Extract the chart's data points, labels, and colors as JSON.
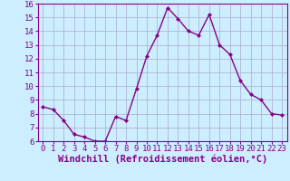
{
  "x": [
    0,
    1,
    2,
    3,
    4,
    5,
    6,
    7,
    8,
    9,
    10,
    11,
    12,
    13,
    14,
    15,
    16,
    17,
    18,
    19,
    20,
    21,
    22,
    23
  ],
  "y": [
    8.5,
    8.3,
    7.5,
    6.5,
    6.3,
    6.0,
    6.0,
    7.8,
    7.5,
    9.8,
    12.2,
    13.7,
    15.7,
    14.9,
    14.0,
    13.7,
    15.2,
    13.0,
    12.3,
    10.4,
    9.4,
    9.0,
    8.0,
    7.9
  ],
  "xlabel": "Windchill (Refroidissement éolien,°C)",
  "ylim": [
    6,
    16
  ],
  "yticks": [
    6,
    7,
    8,
    9,
    10,
    11,
    12,
    13,
    14,
    15,
    16
  ],
  "xticks": [
    0,
    1,
    2,
    3,
    4,
    5,
    6,
    7,
    8,
    9,
    10,
    11,
    12,
    13,
    14,
    15,
    16,
    17,
    18,
    19,
    20,
    21,
    22,
    23
  ],
  "line_color": "#880088",
  "marker": "D",
  "marker_size": 2.0,
  "bg_color": "#cceeff",
  "grid_color": "#aaaacc",
  "xlabel_fontsize": 7.5,
  "tick_fontsize": 6.5,
  "spine_color": "#880088"
}
